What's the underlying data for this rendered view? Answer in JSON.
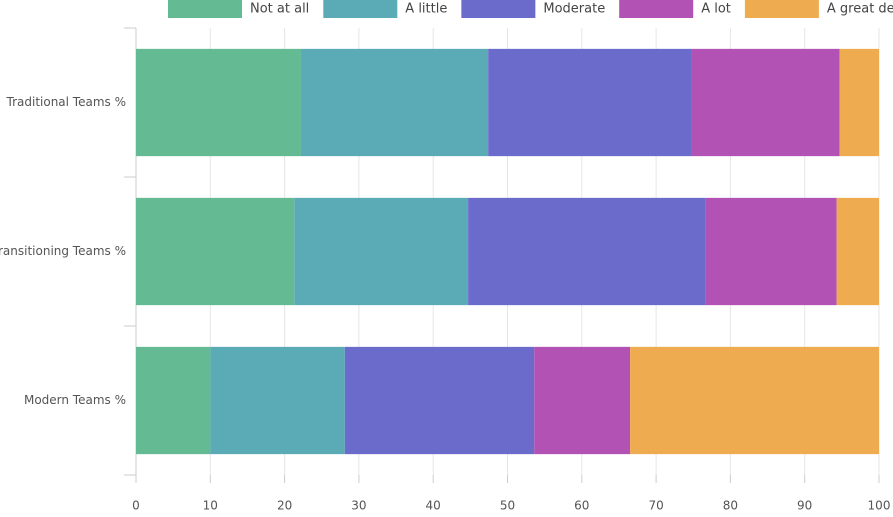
{
  "chart_data": {
    "type": "bar",
    "orientation": "horizontal",
    "stacked": true,
    "categories": [
      "Traditional Teams %",
      "Transitioning Teams %",
      "Modern Teams %"
    ],
    "series": [
      {
        "name": "Not at all",
        "color": "#64bb93",
        "values": [
          22.2,
          21.3,
          10.0
        ]
      },
      {
        "name": "A little",
        "color": "#5aabb6",
        "values": [
          25.2,
          23.4,
          18.1
        ]
      },
      {
        "name": "Moderate",
        "color": "#6b6bcc",
        "values": [
          27.3,
          31.9,
          25.5
        ]
      },
      {
        "name": "A lot",
        "color": "#b152b4",
        "values": [
          20.0,
          17.7,
          12.9
        ]
      },
      {
        "name": "A great deal",
        "color": "#efab4f",
        "values": [
          5.3,
          5.7,
          33.5
        ]
      }
    ],
    "xlim": [
      0,
      100
    ],
    "xticks": [
      0,
      10,
      20,
      30,
      40,
      50,
      60,
      70,
      80,
      90,
      100
    ],
    "grid": true,
    "legend": "top"
  }
}
